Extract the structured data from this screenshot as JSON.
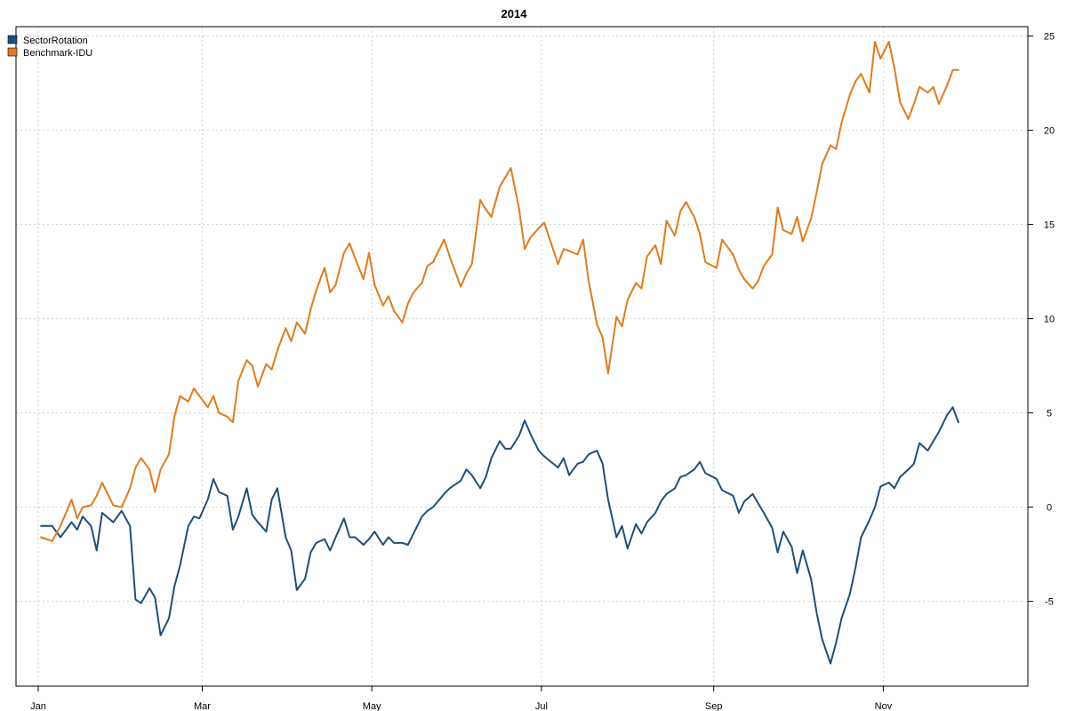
{
  "chart_data": {
    "type": "line",
    "title": "2014",
    "xlabel": "",
    "ylabel": "",
    "x_tick_labels": [
      "Jan",
      "Mar",
      "May",
      "Jul",
      "Sep",
      "Nov"
    ],
    "x_tick_dates": [
      "2014-01-01",
      "2014-03-01",
      "2014-05-01",
      "2014-07-01",
      "2014-09-01",
      "2014-11-01"
    ],
    "xlim": [
      "2013-12-24",
      "2014-12-23"
    ],
    "y_ticks": [
      -5,
      0,
      5,
      10,
      15,
      20,
      25
    ],
    "ylim": [
      -9.5,
      25.5
    ],
    "grid": true,
    "legend_position": "top-left",
    "colors": {
      "SectorRotation": "#1f4e79",
      "Benchmark-IDU": "#e07b1f"
    },
    "series": [
      {
        "name": "SectorRotation",
        "color": "#1f4e79",
        "points": [
          [
            "2014-01-02",
            -1.0
          ],
          [
            "2014-01-06",
            -1.0
          ],
          [
            "2014-01-09",
            -1.6
          ],
          [
            "2014-01-13",
            -0.8
          ],
          [
            "2014-01-15",
            -1.2
          ],
          [
            "2014-01-17",
            -0.5
          ],
          [
            "2014-01-20",
            -1.0
          ],
          [
            "2014-01-22",
            -2.3
          ],
          [
            "2014-01-24",
            -0.3
          ],
          [
            "2014-01-28",
            -0.8
          ],
          [
            "2014-01-31",
            -0.2
          ],
          [
            "2014-02-03",
            -1.0
          ],
          [
            "2014-02-05",
            -4.9
          ],
          [
            "2014-02-07",
            -5.1
          ],
          [
            "2014-02-10",
            -4.3
          ],
          [
            "2014-02-12",
            -4.8
          ],
          [
            "2014-02-14",
            -6.8
          ],
          [
            "2014-02-17",
            -5.9
          ],
          [
            "2014-02-19",
            -4.2
          ],
          [
            "2014-02-21",
            -3.1
          ],
          [
            "2014-02-24",
            -1.0
          ],
          [
            "2014-02-26",
            -0.5
          ],
          [
            "2014-02-28",
            -0.6
          ],
          [
            "2014-03-03",
            0.4
          ],
          [
            "2014-03-05",
            1.5
          ],
          [
            "2014-03-07",
            0.8
          ],
          [
            "2014-03-10",
            0.6
          ],
          [
            "2014-03-12",
            -1.2
          ],
          [
            "2014-03-14",
            -0.5
          ],
          [
            "2014-03-17",
            1.0
          ],
          [
            "2014-03-19",
            -0.4
          ],
          [
            "2014-03-21",
            -0.8
          ],
          [
            "2014-03-24",
            -1.3
          ],
          [
            "2014-03-26",
            0.4
          ],
          [
            "2014-03-28",
            1.0
          ],
          [
            "2014-03-31",
            -1.6
          ],
          [
            "2014-04-02",
            -2.3
          ],
          [
            "2014-04-04",
            -4.4
          ],
          [
            "2014-04-07",
            -3.8
          ],
          [
            "2014-04-09",
            -2.4
          ],
          [
            "2014-04-11",
            -1.9
          ],
          [
            "2014-04-14",
            -1.7
          ],
          [
            "2014-04-16",
            -2.3
          ],
          [
            "2014-04-18",
            -1.6
          ],
          [
            "2014-04-21",
            -0.6
          ],
          [
            "2014-04-23",
            -1.6
          ],
          [
            "2014-04-25",
            -1.6
          ],
          [
            "2014-04-28",
            -2.0
          ],
          [
            "2014-04-30",
            -1.7
          ],
          [
            "2014-05-02",
            -1.3
          ],
          [
            "2014-05-05",
            -2.0
          ],
          [
            "2014-05-07",
            -1.6
          ],
          [
            "2014-05-09",
            -1.9
          ],
          [
            "2014-05-12",
            -1.9
          ],
          [
            "2014-05-14",
            -2.0
          ],
          [
            "2014-05-16",
            -1.4
          ],
          [
            "2014-05-19",
            -0.5
          ],
          [
            "2014-05-21",
            -0.2
          ],
          [
            "2014-05-23",
            0.0
          ],
          [
            "2014-05-27",
            0.7
          ],
          [
            "2014-05-29",
            1.0
          ],
          [
            "2014-06-02",
            1.4
          ],
          [
            "2014-06-04",
            2.0
          ],
          [
            "2014-06-06",
            1.7
          ],
          [
            "2014-06-09",
            1.0
          ],
          [
            "2014-06-11",
            1.6
          ],
          [
            "2014-06-13",
            2.6
          ],
          [
            "2014-06-16",
            3.5
          ],
          [
            "2014-06-18",
            3.1
          ],
          [
            "2014-06-20",
            3.1
          ],
          [
            "2014-06-23",
            3.8
          ],
          [
            "2014-06-25",
            4.6
          ],
          [
            "2014-06-27",
            3.9
          ],
          [
            "2014-06-30",
            3.0
          ],
          [
            "2014-07-02",
            2.7
          ],
          [
            "2014-07-07",
            2.1
          ],
          [
            "2014-07-09",
            2.6
          ],
          [
            "2014-07-11",
            1.7
          ],
          [
            "2014-07-14",
            2.3
          ],
          [
            "2014-07-16",
            2.4
          ],
          [
            "2014-07-18",
            2.8
          ],
          [
            "2014-07-21",
            3.0
          ],
          [
            "2014-07-23",
            2.3
          ],
          [
            "2014-07-25",
            0.4
          ],
          [
            "2014-07-28",
            -1.6
          ],
          [
            "2014-07-30",
            -1.0
          ],
          [
            "2014-08-01",
            -2.2
          ],
          [
            "2014-08-04",
            -0.9
          ],
          [
            "2014-08-06",
            -1.4
          ],
          [
            "2014-08-08",
            -0.8
          ],
          [
            "2014-08-11",
            -0.3
          ],
          [
            "2014-08-13",
            0.3
          ],
          [
            "2014-08-15",
            0.7
          ],
          [
            "2014-08-18",
            1.0
          ],
          [
            "2014-08-20",
            1.6
          ],
          [
            "2014-08-22",
            1.7
          ],
          [
            "2014-08-25",
            2.0
          ],
          [
            "2014-08-27",
            2.4
          ],
          [
            "2014-08-29",
            1.8
          ],
          [
            "2014-09-02",
            1.5
          ],
          [
            "2014-09-04",
            0.9
          ],
          [
            "2014-09-08",
            0.6
          ],
          [
            "2014-09-10",
            -0.3
          ],
          [
            "2014-09-12",
            0.3
          ],
          [
            "2014-09-15",
            0.7
          ],
          [
            "2014-09-17",
            0.2
          ],
          [
            "2014-09-19",
            -0.3
          ],
          [
            "2014-09-22",
            -1.1
          ],
          [
            "2014-09-24",
            -2.4
          ],
          [
            "2014-09-26",
            -1.3
          ],
          [
            "2014-09-29",
            -2.1
          ],
          [
            "2014-10-01",
            -3.5
          ],
          [
            "2014-10-03",
            -2.3
          ],
          [
            "2014-10-06",
            -3.8
          ],
          [
            "2014-10-08",
            -5.6
          ],
          [
            "2014-10-10",
            -7.0
          ],
          [
            "2014-10-13",
            -8.3
          ],
          [
            "2014-10-15",
            -7.2
          ],
          [
            "2014-10-17",
            -5.9
          ],
          [
            "2014-10-20",
            -4.6
          ],
          [
            "2014-10-22",
            -3.2
          ],
          [
            "2014-10-24",
            -1.6
          ],
          [
            "2014-10-27",
            -0.7
          ],
          [
            "2014-10-29",
            0.0
          ],
          [
            "2014-10-31",
            1.1
          ],
          [
            "2014-11-03",
            1.3
          ],
          [
            "2014-11-05",
            1.0
          ],
          [
            "2014-11-07",
            1.6
          ],
          [
            "2014-11-10",
            2.0
          ],
          [
            "2014-11-12",
            2.3
          ],
          [
            "2014-11-14",
            3.4
          ],
          [
            "2014-11-17",
            3.0
          ],
          [
            "2014-11-19",
            3.5
          ],
          [
            "2014-11-21",
            4.0
          ],
          [
            "2014-11-24",
            4.9
          ],
          [
            "2014-11-26",
            5.3
          ],
          [
            "2014-11-28",
            4.5
          ]
        ]
      },
      {
        "name": "Benchmark-IDU",
        "color": "#e07b1f",
        "points": [
          [
            "2014-01-02",
            -1.6
          ],
          [
            "2014-01-06",
            -1.8
          ],
          [
            "2014-01-09",
            -1.0
          ],
          [
            "2014-01-13",
            0.4
          ],
          [
            "2014-01-15",
            -0.6
          ],
          [
            "2014-01-17",
            0.0
          ],
          [
            "2014-01-20",
            0.1
          ],
          [
            "2014-01-22",
            0.6
          ],
          [
            "2014-01-24",
            1.3
          ],
          [
            "2014-01-28",
            0.1
          ],
          [
            "2014-01-31",
            0.0
          ],
          [
            "2014-02-03",
            1.0
          ],
          [
            "2014-02-05",
            2.1
          ],
          [
            "2014-02-07",
            2.6
          ],
          [
            "2014-02-10",
            2.0
          ],
          [
            "2014-02-12",
            0.8
          ],
          [
            "2014-02-14",
            2.0
          ],
          [
            "2014-02-17",
            2.8
          ],
          [
            "2014-02-19",
            4.8
          ],
          [
            "2014-02-21",
            5.9
          ],
          [
            "2014-02-24",
            5.6
          ],
          [
            "2014-02-26",
            6.3
          ],
          [
            "2014-02-28",
            5.9
          ],
          [
            "2014-03-03",
            5.3
          ],
          [
            "2014-03-05",
            5.9
          ],
          [
            "2014-03-07",
            5.0
          ],
          [
            "2014-03-10",
            4.8
          ],
          [
            "2014-03-12",
            4.5
          ],
          [
            "2014-03-14",
            6.7
          ],
          [
            "2014-03-17",
            7.8
          ],
          [
            "2014-03-19",
            7.5
          ],
          [
            "2014-03-21",
            6.4
          ],
          [
            "2014-03-24",
            7.6
          ],
          [
            "2014-03-26",
            7.3
          ],
          [
            "2014-03-28",
            8.3
          ],
          [
            "2014-03-31",
            9.5
          ],
          [
            "2014-04-02",
            8.8
          ],
          [
            "2014-04-04",
            9.8
          ],
          [
            "2014-04-07",
            9.2
          ],
          [
            "2014-04-09",
            10.5
          ],
          [
            "2014-04-11",
            11.5
          ],
          [
            "2014-04-14",
            12.7
          ],
          [
            "2014-04-16",
            11.4
          ],
          [
            "2014-04-18",
            11.8
          ],
          [
            "2014-04-21",
            13.5
          ],
          [
            "2014-04-23",
            14.0
          ],
          [
            "2014-04-25",
            13.2
          ],
          [
            "2014-04-28",
            12.1
          ],
          [
            "2014-04-30",
            13.5
          ],
          [
            "2014-05-02",
            11.8
          ],
          [
            "2014-05-05",
            10.7
          ],
          [
            "2014-05-07",
            11.2
          ],
          [
            "2014-05-09",
            10.4
          ],
          [
            "2014-05-12",
            9.8
          ],
          [
            "2014-05-14",
            10.8
          ],
          [
            "2014-05-16",
            11.4
          ],
          [
            "2014-05-19",
            11.9
          ],
          [
            "2014-05-21",
            12.8
          ],
          [
            "2014-05-23",
            13.0
          ],
          [
            "2014-05-27",
            14.2
          ],
          [
            "2014-05-29",
            13.3
          ],
          [
            "2014-06-02",
            11.7
          ],
          [
            "2014-06-04",
            12.4
          ],
          [
            "2014-06-06",
            12.9
          ],
          [
            "2014-06-09",
            16.3
          ],
          [
            "2014-06-11",
            15.8
          ],
          [
            "2014-06-13",
            15.4
          ],
          [
            "2014-06-16",
            17.0
          ],
          [
            "2014-06-18",
            17.5
          ],
          [
            "2014-06-20",
            18.0
          ],
          [
            "2014-06-23",
            15.8
          ],
          [
            "2014-06-25",
            13.7
          ],
          [
            "2014-06-27",
            14.3
          ],
          [
            "2014-06-30",
            14.8
          ],
          [
            "2014-07-02",
            15.1
          ],
          [
            "2014-07-07",
            12.9
          ],
          [
            "2014-07-09",
            13.7
          ],
          [
            "2014-07-11",
            13.6
          ],
          [
            "2014-07-14",
            13.4
          ],
          [
            "2014-07-16",
            14.2
          ],
          [
            "2014-07-18",
            12.0
          ],
          [
            "2014-07-21",
            9.7
          ],
          [
            "2014-07-23",
            9.0
          ],
          [
            "2014-07-25",
            7.1
          ],
          [
            "2014-07-28",
            10.1
          ],
          [
            "2014-07-30",
            9.6
          ],
          [
            "2014-08-01",
            11.0
          ],
          [
            "2014-08-04",
            11.9
          ],
          [
            "2014-08-06",
            11.6
          ],
          [
            "2014-08-08",
            13.3
          ],
          [
            "2014-08-11",
            13.9
          ],
          [
            "2014-08-13",
            12.9
          ],
          [
            "2014-08-15",
            15.2
          ],
          [
            "2014-08-18",
            14.4
          ],
          [
            "2014-08-20",
            15.7
          ],
          [
            "2014-08-22",
            16.2
          ],
          [
            "2014-08-25",
            15.4
          ],
          [
            "2014-08-27",
            14.5
          ],
          [
            "2014-08-29",
            13.0
          ],
          [
            "2014-09-02",
            12.7
          ],
          [
            "2014-09-04",
            14.2
          ],
          [
            "2014-09-08",
            13.4
          ],
          [
            "2014-09-10",
            12.6
          ],
          [
            "2014-09-12",
            12.1
          ],
          [
            "2014-09-15",
            11.6
          ],
          [
            "2014-09-17",
            12.0
          ],
          [
            "2014-09-19",
            12.8
          ],
          [
            "2014-09-22",
            13.4
          ],
          [
            "2014-09-24",
            15.9
          ],
          [
            "2014-09-26",
            14.7
          ],
          [
            "2014-09-29",
            14.5
          ],
          [
            "2014-10-01",
            15.4
          ],
          [
            "2014-10-03",
            14.1
          ],
          [
            "2014-10-06",
            15.3
          ],
          [
            "2014-10-08",
            16.7
          ],
          [
            "2014-10-10",
            18.2
          ],
          [
            "2014-10-13",
            19.2
          ],
          [
            "2014-10-15",
            19.0
          ],
          [
            "2014-10-17",
            20.4
          ],
          [
            "2014-10-20",
            21.9
          ],
          [
            "2014-10-22",
            22.6
          ],
          [
            "2014-10-24",
            23.0
          ],
          [
            "2014-10-27",
            22.0
          ],
          [
            "2014-10-29",
            24.7
          ],
          [
            "2014-10-31",
            23.8
          ],
          [
            "2014-11-03",
            24.7
          ],
          [
            "2014-11-05",
            23.3
          ],
          [
            "2014-11-07",
            21.5
          ],
          [
            "2014-11-10",
            20.6
          ],
          [
            "2014-11-12",
            21.4
          ],
          [
            "2014-11-14",
            22.3
          ],
          [
            "2014-11-17",
            22.0
          ],
          [
            "2014-11-19",
            22.3
          ],
          [
            "2014-11-21",
            21.4
          ],
          [
            "2014-11-24",
            22.4
          ],
          [
            "2014-11-26",
            23.2
          ],
          [
            "2014-11-28",
            23.2
          ]
        ]
      }
    ]
  }
}
